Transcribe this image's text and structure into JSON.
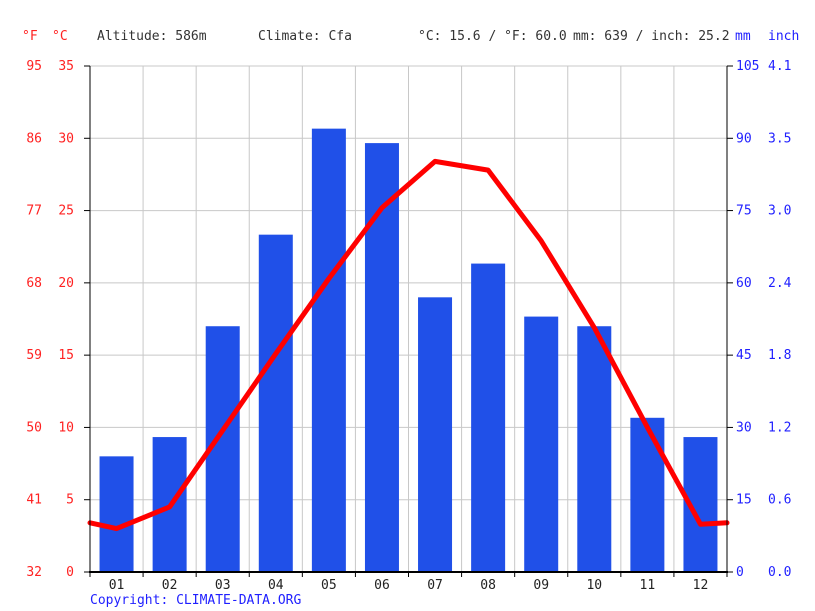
{
  "header": {
    "f_label": "°F",
    "c_label": "°C",
    "altitude": "Altitude: 586m",
    "climate": "Climate: Cfa",
    "temp_summary": "°C: 15.6 / °F: 60.0",
    "precip_summary": "mm: 639 / inch: 25.2",
    "mm_label": "mm",
    "inch_label": "inch"
  },
  "footer": {
    "copyright_label": "Copyright: ",
    "link": "CLIMATE-DATA.ORG"
  },
  "colors": {
    "bar": "#2050e8",
    "line": "#ff0000",
    "red_text": "#ff2222",
    "blue_text": "#1f1fff",
    "grid": "#c8c8c8",
    "axis": "#000000",
    "month_text": "#222222"
  },
  "chart_data": {
    "type": "bar",
    "title": "Climate graph (monthly precipitation bars and mean temperature line)",
    "categories": [
      "01",
      "02",
      "03",
      "04",
      "05",
      "06",
      "07",
      "08",
      "09",
      "10",
      "11",
      "12"
    ],
    "series": [
      {
        "name": "precipitation_mm",
        "type": "bar",
        "values": [
          24,
          28,
          51,
          70,
          92,
          89,
          57,
          64,
          53,
          51,
          32,
          28
        ]
      },
      {
        "name": "temperature_c",
        "type": "line",
        "values": [
          3.0,
          4.5,
          9.8,
          15.1,
          20.3,
          25.2,
          28.4,
          27.8,
          22.9,
          16.9,
          10.0,
          3.3
        ],
        "edge_left": 3.4,
        "edge_right": 3.4
      }
    ],
    "axes": {
      "temp_c_ticks": [
        "35",
        "30",
        "25",
        "20",
        "15",
        "10",
        "5",
        "0"
      ],
      "temp_f_ticks": [
        "95",
        "86",
        "77",
        "68",
        "59",
        "50",
        "41",
        "32"
      ],
      "precip_mm_ticks": [
        "105",
        "90",
        "75",
        "60",
        "45",
        "30",
        "15",
        "0"
      ],
      "precip_inch_ticks": [
        "4.1",
        "3.5",
        "3.0",
        "2.4",
        "1.8",
        "1.2",
        "0.6",
        "0.0"
      ],
      "temp_range_c": [
        0,
        35
      ],
      "precip_range_mm": [
        0,
        105
      ],
      "grid": true,
      "legend": "none"
    }
  }
}
